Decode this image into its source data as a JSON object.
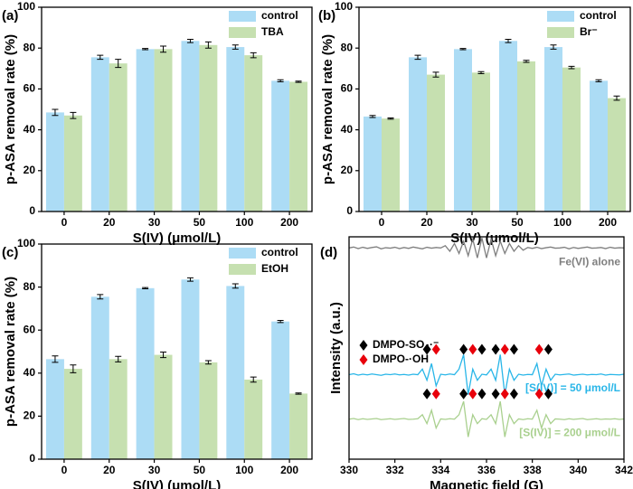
{
  "chart_data": [
    {
      "type": "bar",
      "panel_label": "(a)",
      "xlabel": "S(IV) (μmol/L)",
      "ylabel": "p-ASA removal rate (%)",
      "categories": [
        "0",
        "20",
        "30",
        "50",
        "100",
        "200"
      ],
      "series": [
        {
          "name": "control",
          "color": "#acdcf5",
          "values": [
            48.5,
            75.5,
            79.5,
            83.5,
            80.5,
            64
          ],
          "errors": [
            1.5,
            1,
            0.3,
            0.8,
            1,
            0.5
          ]
        },
        {
          "name": "TBA",
          "color": "#c6e0b0",
          "values": [
            47,
            72.5,
            79.5,
            81.5,
            76.5,
            63.5
          ],
          "errors": [
            1.5,
            2,
            1.5,
            1.5,
            1.2,
            0.3
          ]
        }
      ],
      "ylim": [
        0,
        100
      ],
      "yticks": [
        0,
        20,
        40,
        60,
        80,
        100
      ],
      "legend": "upper right"
    },
    {
      "type": "bar",
      "panel_label": "(b)",
      "xlabel": "S(IV) (μmol/L)",
      "ylabel": "p-ASA removal rate (%)",
      "categories": [
        "0",
        "20",
        "30",
        "50",
        "100",
        "200"
      ],
      "series": [
        {
          "name": "control",
          "color": "#acdcf5",
          "values": [
            46.5,
            75.5,
            79.5,
            83.5,
            80.5,
            64
          ],
          "errors": [
            0.5,
            1,
            0.3,
            0.8,
            1,
            0.5
          ]
        },
        {
          "name": "Br⁻",
          "color": "#c6e0b0",
          "values": [
            45.5,
            67,
            68,
            73.5,
            70.5,
            55.5
          ],
          "errors": [
            0.3,
            1.2,
            0.5,
            0.5,
            0.6,
            1
          ]
        }
      ],
      "ylim": [
        0,
        100
      ],
      "yticks": [
        0,
        20,
        40,
        60,
        80,
        100
      ],
      "legend": "upper right"
    },
    {
      "type": "bar",
      "panel_label": "(c)",
      "xlabel": "S(IV) (μmol/L)",
      "ylabel": "p-ASA removal rate (%)",
      "categories": [
        "0",
        "20",
        "30",
        "50",
        "100",
        "200"
      ],
      "series": [
        {
          "name": "control",
          "color": "#acdcf5",
          "values": [
            46.5,
            75.5,
            79.5,
            83.5,
            80.5,
            64
          ],
          "errors": [
            1.5,
            1,
            0.3,
            0.8,
            1,
            0.5
          ]
        },
        {
          "name": "EtOH",
          "color": "#c6e0b0",
          "values": [
            42,
            46.5,
            48.5,
            45,
            37,
            30.5
          ],
          "errors": [
            1.8,
            1.3,
            1.3,
            0.8,
            1.2,
            0.3
          ]
        }
      ],
      "ylim": [
        0,
        100
      ],
      "yticks": [
        0,
        20,
        40,
        60,
        80,
        100
      ],
      "legend": "upper right"
    },
    {
      "type": "line",
      "panel_label": "(d)",
      "xlabel": "Magnetic field (G)",
      "ylabel": "Intensity (a.u.)",
      "xlim": [
        330,
        342
      ],
      "xticks": [
        330,
        332,
        334,
        336,
        338,
        340,
        342
      ],
      "ylim": [
        0,
        100
      ],
      "markers": [
        {
          "label": "DMPO-SO₄·⁻",
          "color": "#000000"
        },
        {
          "label": "DMPO-·OH",
          "color": "#e8000b"
        }
      ],
      "x": [
        330,
        330.2,
        330.4,
        330.6,
        330.8,
        331,
        331.2,
        331.4,
        331.6,
        331.8,
        332,
        332.2,
        332.4,
        332.6,
        332.8,
        333,
        333.2,
        333.4,
        333.6,
        333.8,
        334,
        334.2,
        334.4,
        334.6,
        334.8,
        335,
        335.2,
        335.4,
        335.6,
        335.8,
        336,
        336.2,
        336.4,
        336.6,
        336.8,
        337,
        337.2,
        337.4,
        337.6,
        337.8,
        338,
        338.2,
        338.4,
        338.6,
        338.8,
        339,
        339.2,
        339.4,
        339.6,
        339.8,
        340,
        340.2,
        340.4,
        340.6,
        340.8,
        341,
        341.2,
        341.4,
        341.6,
        341.8,
        342
      ],
      "series": [
        {
          "name": "Fe(VI) alone",
          "color": "#7f7f7f",
          "values": [
            95,
            95.4,
            94.7,
            95.3,
            94.8,
            95.2,
            95.5,
            94.6,
            95.1,
            94.9,
            95.3,
            94.7,
            95.2,
            94.8,
            95.4,
            95,
            94.6,
            95.3,
            94.9,
            95.2,
            95,
            96,
            93.5,
            97,
            92.5,
            98,
            91.5,
            99,
            90.5,
            99.5,
            90.5,
            99,
            91.5,
            98,
            92.5,
            97,
            93.5,
            96,
            94,
            95.2,
            94.8,
            95.3,
            94.7,
            95.1,
            95.4,
            94.9,
            95,
            95.3,
            94.6,
            95.2,
            94.8,
            95.1,
            95.4,
            94.9,
            95,
            95.2,
            94.7,
            95.3,
            94.9,
            95.1,
            95
          ]
        },
        {
          "name": "[S(IV)] = 50 μmol/L",
          "color": "#29b6e8",
          "values": [
            38,
            38.4,
            37.8,
            38.2,
            37.9,
            38.3,
            38,
            37.7,
            38.2,
            38,
            38.3,
            37.9,
            38.1,
            37.8,
            38.2,
            38,
            40.5,
            35.5,
            43,
            33,
            38.2,
            37.9,
            38.3,
            38,
            40.5,
            47,
            29,
            40.5,
            35.5,
            38.2,
            37.9,
            40.5,
            35.5,
            47,
            29,
            40.5,
            35.5,
            38.2,
            37.8,
            38.1,
            38,
            43,
            33,
            40.5,
            35.5,
            38.2,
            37.9,
            38.1,
            38.3,
            37.8,
            38,
            38.2,
            37.9,
            38.1,
            38,
            38.3,
            37.8,
            38.1,
            38,
            37.9,
            38.2
          ]
        },
        {
          "name": "[S(IV)] = 200 μmol/L",
          "color": "#a9d08e",
          "values": [
            18,
            18.3,
            17.8,
            18.2,
            17.9,
            18.1,
            18.3,
            17.8,
            18,
            18.2,
            17.9,
            18.1,
            18.3,
            17.9,
            18,
            18.2,
            20,
            16,
            22,
            14,
            18.1,
            17.9,
            18.2,
            18,
            20,
            26,
            10,
            20,
            16,
            18.2,
            17.9,
            20,
            16,
            26,
            10,
            20,
            16,
            18.1,
            17.8,
            18.2,
            18,
            22,
            14,
            20,
            16,
            18.1,
            18,
            17.8,
            18.2,
            17.9,
            18.1,
            18.3,
            17.8,
            18,
            18.2,
            17.9,
            18.1,
            18,
            18.2,
            17.9,
            18.1
          ]
        }
      ]
    }
  ]
}
